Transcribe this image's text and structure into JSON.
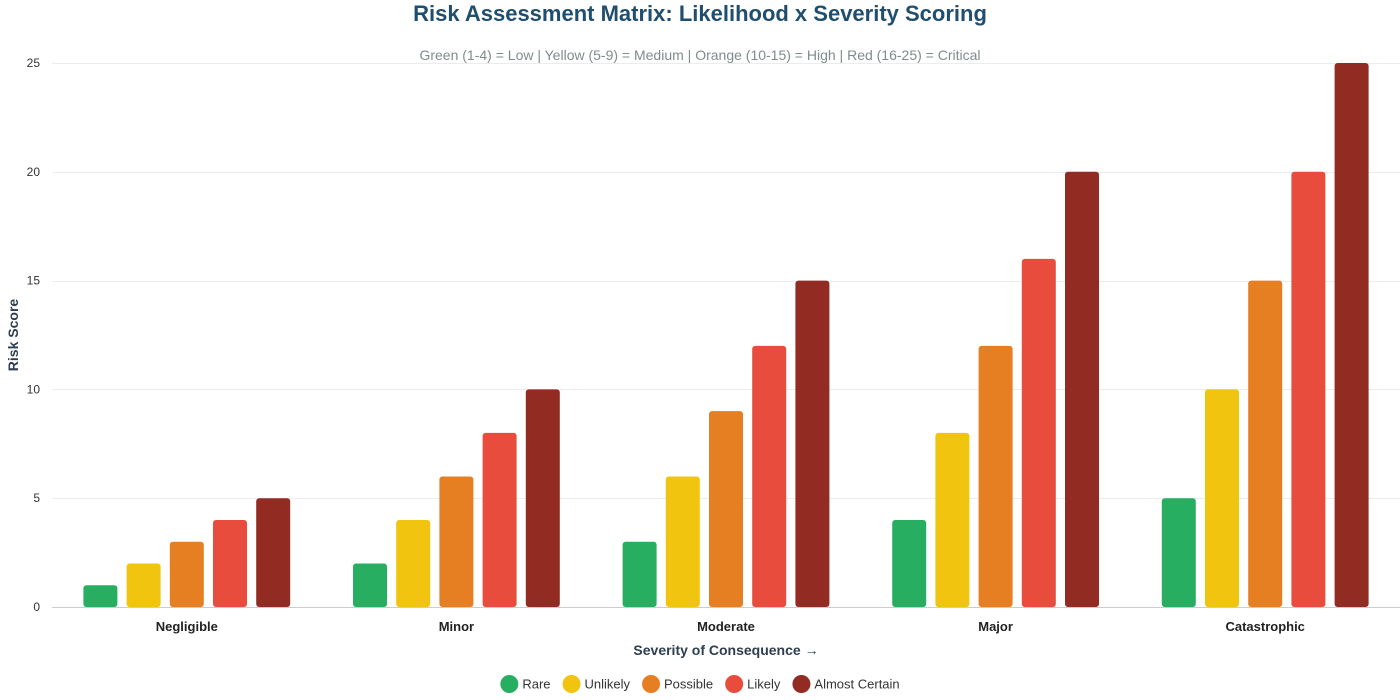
{
  "chart_data": {
    "type": "bar",
    "title": "Risk Assessment Matrix: Likelihood x Severity Scoring",
    "subtitle": "Green (1-4) = Low | Yellow (5-9) = Medium | Orange (10-15) = High | Red (16-25) = Critical",
    "xlabel": "Severity of Consequence →",
    "ylabel": "Risk Score",
    "categories": [
      "Negligible",
      "Minor",
      "Moderate",
      "Major",
      "Catastrophic"
    ],
    "ylim": [
      0,
      25
    ],
    "yticks": [
      0,
      5,
      10,
      15,
      20,
      25
    ],
    "grid": true,
    "legend_position": "bottom-center",
    "series": [
      {
        "name": "Rare",
        "color": "#27ae60",
        "values": [
          1,
          2,
          3,
          4,
          5
        ]
      },
      {
        "name": "Unlikely",
        "color": "#f1c40f",
        "values": [
          2,
          4,
          6,
          8,
          10
        ]
      },
      {
        "name": "Possible",
        "color": "#e67e22",
        "values": [
          3,
          6,
          9,
          12,
          15
        ]
      },
      {
        "name": "Likely",
        "color": "#e74c3c",
        "values": [
          4,
          8,
          12,
          16,
          20
        ]
      },
      {
        "name": "Almost Certain",
        "color": "#922b21",
        "values": [
          5,
          10,
          15,
          20,
          25
        ]
      }
    ]
  },
  "colors": {
    "title": "#1f4e6e",
    "subtitle": "#7f8c8d",
    "axis_title": "#2c3e50",
    "grid": "#ececec",
    "axis_line": "#cccccc"
  }
}
